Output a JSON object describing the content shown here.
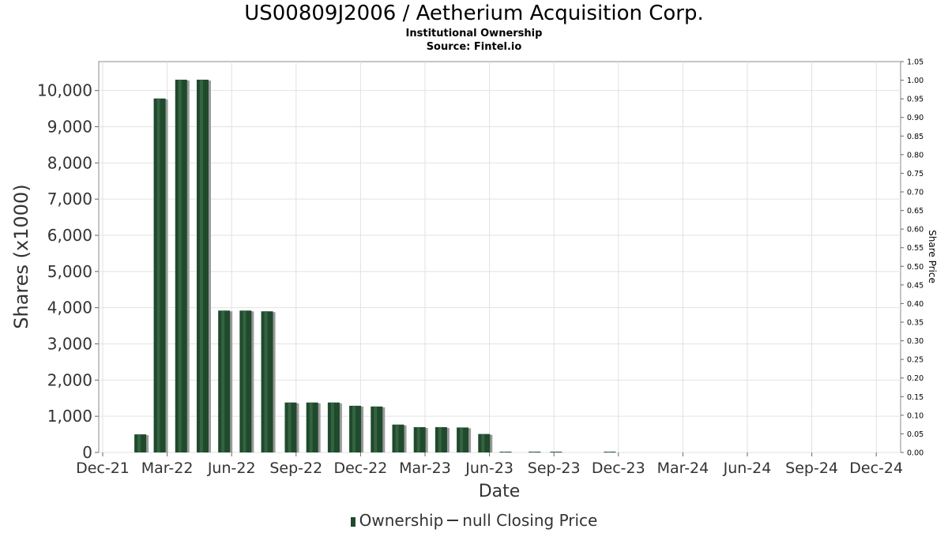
{
  "chart_data": {
    "type": "bar",
    "title": "US00809J2006 / Aetherium Acquisition Corp.",
    "subtitle": "Institutional Ownership",
    "source": "Source: Fintel.io",
    "xlabel": "Date",
    "ylabel": "Shares (x1000)",
    "y2label": "Share Price",
    "ylim": [
      0,
      10800
    ],
    "y_ticks": [
      0,
      1000,
      2000,
      3000,
      4000,
      5000,
      6000,
      7000,
      8000,
      9000,
      10000
    ],
    "y_tick_labels": [
      "0",
      "1,000",
      "2,000",
      "3,000",
      "4,000",
      "5,000",
      "6,000",
      "7,000",
      "8,000",
      "9,000",
      "10,000"
    ],
    "y2lim": [
      0,
      1.05
    ],
    "y2_tick_labels": [
      "0.00",
      "0.05",
      "0.10",
      "0.15",
      "0.20",
      "0.25",
      "0.30",
      "0.35",
      "0.40",
      "0.45",
      "0.50",
      "0.55",
      "0.60",
      "0.65",
      "0.70",
      "0.75",
      "0.80",
      "0.85",
      "0.90",
      "0.95",
      "1.00",
      "1.05"
    ],
    "x_tick_labels": [
      "Dec-21",
      "Mar-22",
      "Jun-22",
      "Sep-22",
      "Dec-22",
      "Mar-23",
      "Jun-23",
      "Sep-23",
      "Dec-23",
      "Mar-24",
      "Jun-24",
      "Sep-24",
      "Dec-24"
    ],
    "x_tick_months": [
      0,
      3,
      6,
      9,
      12,
      15,
      18,
      21,
      24,
      27,
      30,
      33,
      36
    ],
    "grid": true,
    "legend_position": "bottom",
    "series": [
      {
        "name": "Ownership",
        "color": "#1f4a2c",
        "points": [
          {
            "month": 1.75,
            "value": 500
          },
          {
            "month": 2.65,
            "value": 9780
          },
          {
            "month": 3.65,
            "value": 10300
          },
          {
            "month": 4.65,
            "value": 10300
          },
          {
            "month": 5.65,
            "value": 3920
          },
          {
            "month": 6.65,
            "value": 3920
          },
          {
            "month": 7.65,
            "value": 3900
          },
          {
            "month": 8.75,
            "value": 1380
          },
          {
            "month": 9.75,
            "value": 1380
          },
          {
            "month": 10.75,
            "value": 1380
          },
          {
            "month": 11.75,
            "value": 1290
          },
          {
            "month": 12.75,
            "value": 1270
          },
          {
            "month": 13.75,
            "value": 770
          },
          {
            "month": 14.75,
            "value": 700
          },
          {
            "month": 15.75,
            "value": 700
          },
          {
            "month": 16.75,
            "value": 690
          },
          {
            "month": 17.75,
            "value": 510
          },
          {
            "month": 18.75,
            "value": 10
          },
          {
            "month": 20.1,
            "value": 10
          },
          {
            "month": 21.1,
            "value": 10
          },
          {
            "month": 23.6,
            "value": 10
          }
        ]
      }
    ],
    "legend_items": {
      "ownership": "Ownership",
      "price": "null Closing Price"
    }
  }
}
